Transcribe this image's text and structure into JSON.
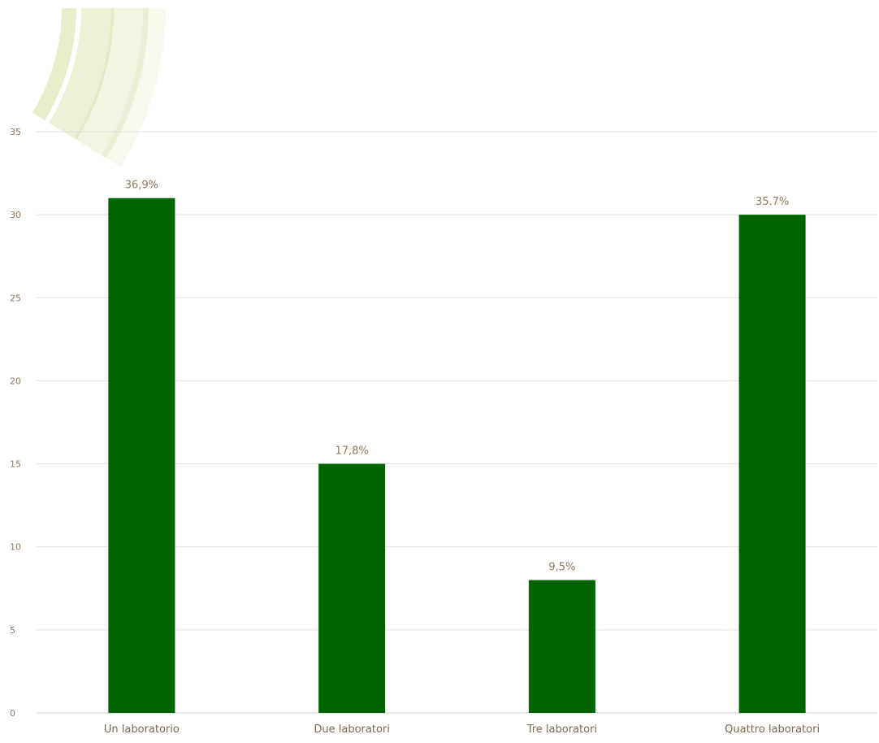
{
  "colors": {
    "bar": "#006400",
    "data_label": "#8c7a5e",
    "tick_label": "#8c7a5e",
    "category_label": "#7a6a52",
    "gridline": "#e0e0e0",
    "baseline": "#d0d0d0",
    "decoration": "#c9d98a"
  },
  "decoration": {
    "type": "arc-swoosh",
    "position": "top-left"
  },
  "chart_data": {
    "type": "bar",
    "title": "",
    "xlabel": "",
    "ylabel": "",
    "categories": [
      "Un laboratorio",
      "Due laboratori",
      "Tre laboratori",
      "Quattro laboratori"
    ],
    "values": [
      31,
      15,
      8,
      30
    ],
    "data_labels": [
      "36,9%",
      "17,8%",
      "9,5%",
      "35.7%"
    ],
    "ylim": [
      0,
      35
    ],
    "yticks": [
      0,
      5,
      10,
      15,
      20,
      25,
      30,
      35
    ],
    "grid": true,
    "legend": "none"
  }
}
